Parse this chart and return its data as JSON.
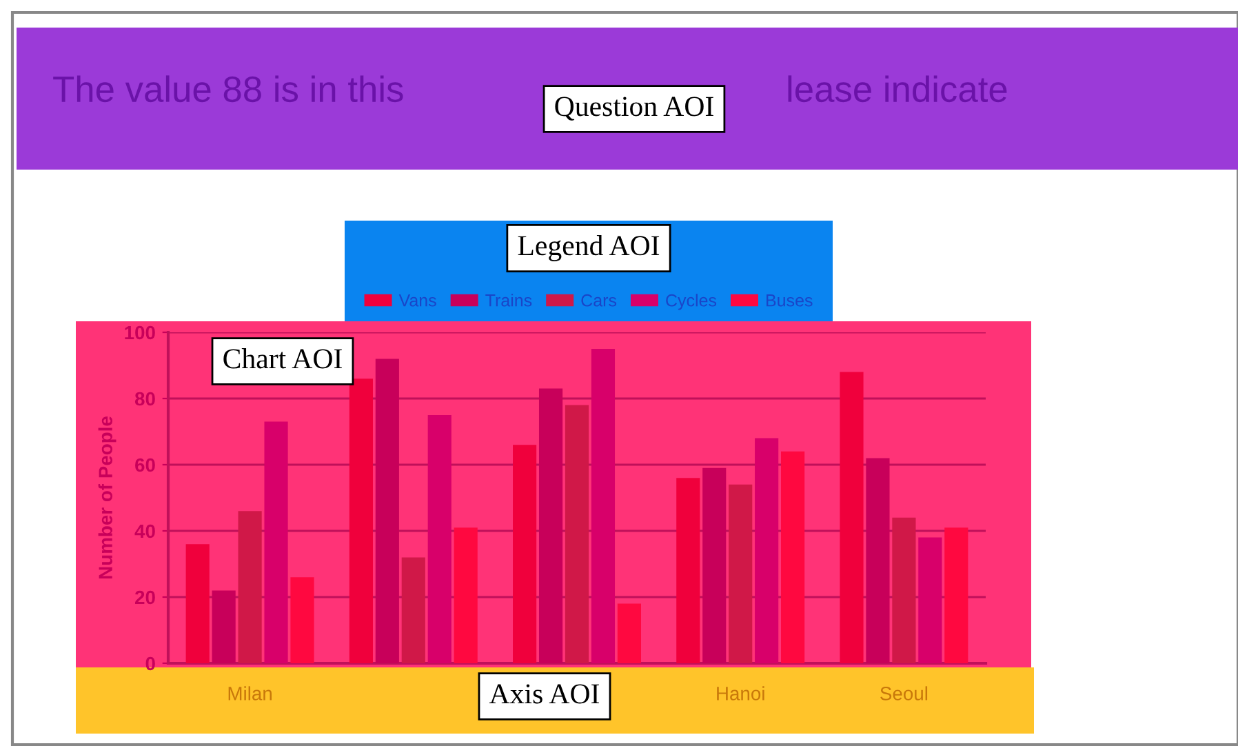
{
  "chart_data": {
    "type": "bar",
    "title": "The value 88 is in this",
    "annotations": [
      "lease indicate",
      "Question AOI",
      "Legend AOI",
      "Chart AOI",
      "Axis AOI"
    ],
    "ylabel": "Number of People",
    "categories": [
      "Milan",
      null,
      null,
      "Hanoi",
      "Seoul"
    ],
    "series": [
      {
        "name": "Vans",
        "color": "#f0003c",
        "values": [
          36,
          86,
          66,
          56,
          88
        ]
      },
      {
        "name": "Trains",
        "color": "#c8005a",
        "values": [
          22,
          92,
          83,
          59,
          62
        ]
      },
      {
        "name": "Cars",
        "color": "#d01848",
        "values": [
          46,
          32,
          78,
          54,
          44
        ]
      },
      {
        "name": "Cycles",
        "color": "#d8006a",
        "values": [
          73,
          75,
          95,
          68,
          38
        ]
      },
      {
        "name": "Buses",
        "color": "#ff0840",
        "values": [
          26,
          41,
          18,
          64,
          41
        ]
      }
    ],
    "ylim": [
      0,
      100
    ],
    "yticks": [
      0,
      20,
      40,
      60,
      80,
      100
    ],
    "grid": "y",
    "legend": "top"
  }
}
